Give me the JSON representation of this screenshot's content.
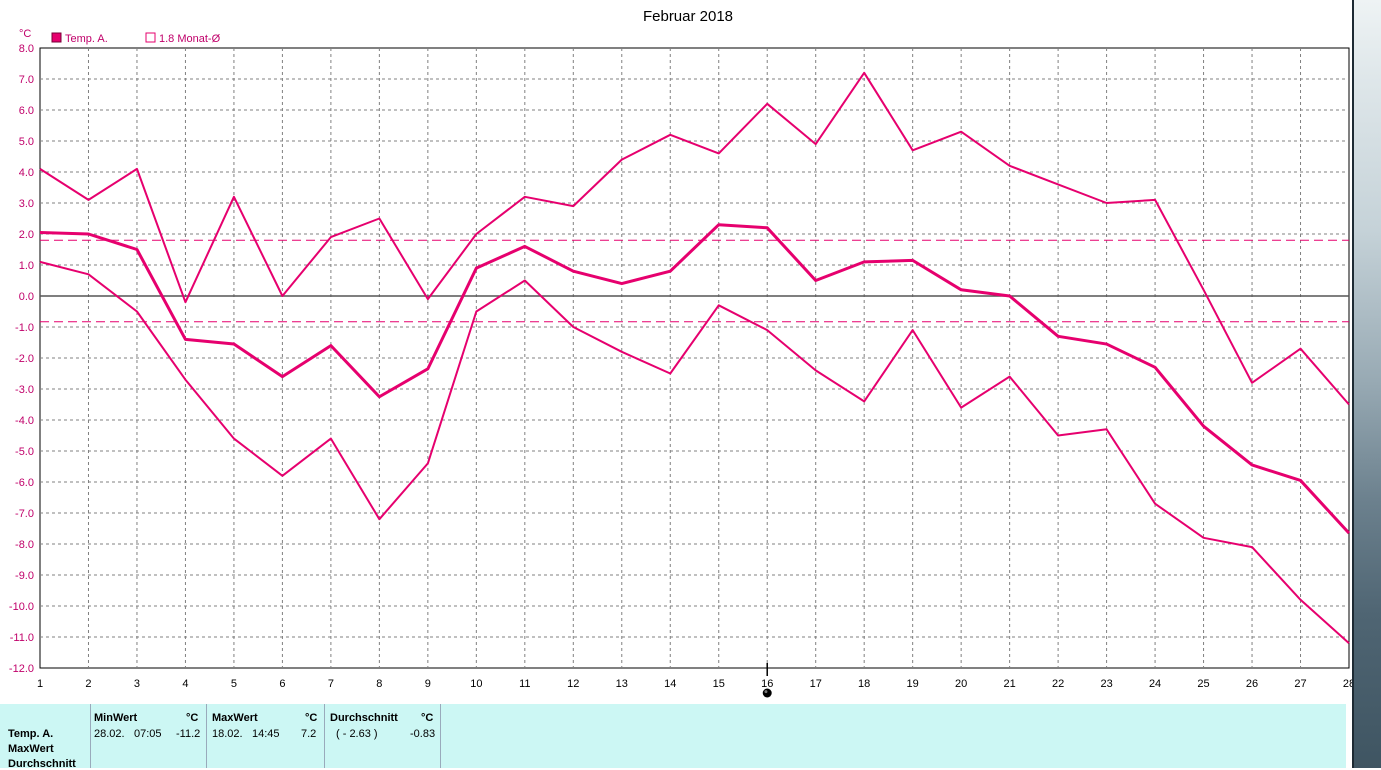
{
  "chart_data": {
    "type": "line",
    "title": "Februar 2018",
    "ylabel": "°C",
    "xlabel": "",
    "ylim": [
      -12.0,
      8.0
    ],
    "xlim": [
      1,
      28
    ],
    "yticks": [
      "8.0",
      "7.0",
      "6.0",
      "5.0",
      "4.0",
      "3.0",
      "2.0",
      "1.0",
      "0.0",
      "-1.0",
      "-2.0",
      "-3.0",
      "-4.0",
      "-5.0",
      "-6.0",
      "-7.0",
      "-8.0",
      "-9.0",
      "-10.0",
      "-11.0",
      "-12.0"
    ],
    "x": [
      1,
      2,
      3,
      4,
      5,
      6,
      7,
      8,
      9,
      10,
      11,
      12,
      13,
      14,
      15,
      16,
      17,
      18,
      19,
      20,
      21,
      22,
      23,
      24,
      25,
      26,
      27,
      28
    ],
    "grid": true,
    "legend_position": "top-left",
    "legend": [
      {
        "label": "Temp. A.",
        "marker": "filled-square"
      },
      {
        "label": "1.8 Monat-Ø",
        "marker": "open-square"
      }
    ],
    "series": [
      {
        "role": "max",
        "values": [
          4.1,
          3.1,
          4.1,
          -0.2,
          3.2,
          0.0,
          1.9,
          2.5,
          -0.1,
          2.0,
          3.2,
          2.9,
          4.4,
          5.2,
          4.6,
          6.2,
          4.9,
          7.2,
          4.7,
          5.3,
          4.2,
          3.6,
          3.0,
          3.1,
          0.2,
          -2.8,
          -1.7,
          -3.5
        ]
      },
      {
        "role": "mean",
        "values": [
          2.05,
          2.0,
          1.5,
          -1.4,
          -1.55,
          -2.6,
          -1.6,
          -3.25,
          -2.35,
          0.9,
          1.6,
          0.8,
          0.4,
          0.8,
          2.3,
          2.2,
          0.5,
          1.1,
          1.15,
          0.2,
          0.0,
          -1.3,
          -1.55,
          -2.3,
          -4.2,
          -5.45,
          -5.95,
          -7.65
        ]
      },
      {
        "role": "min",
        "values": [
          1.1,
          0.7,
          -0.5,
          -2.7,
          -4.6,
          -5.8,
          -4.6,
          -7.2,
          -5.4,
          -0.5,
          0.5,
          -1.0,
          -1.8,
          -2.5,
          -0.3,
          -1.1,
          -2.4,
          -3.4,
          -1.1,
          -3.6,
          -2.6,
          -4.5,
          -4.3,
          -6.7,
          -7.8,
          -8.1,
          -9.8,
          -11.2
        ]
      }
    ],
    "reference_lines": [
      1.8,
      -0.83
    ],
    "marker_day": 16,
    "colors": {
      "series": "#e6006e",
      "zero_line": "#555555",
      "grid": "#808080",
      "ytick_text": "#c0006a"
    }
  },
  "table": {
    "row_labels": [
      "Temp. A.",
      "MaxWert",
      "Durchschnitt"
    ],
    "min": {
      "header": "MinWert",
      "unit": "°C",
      "date": "28.02.",
      "time": "07:05",
      "value": "-11.2"
    },
    "max": {
      "header": "MaxWert",
      "unit": "°C",
      "date": "18.02.",
      "time": "14:45",
      "value": "7.2"
    },
    "avg": {
      "header": "Durchschnitt",
      "unit": "°C",
      "note": "( - 2.63 )",
      "value": "-0.83"
    }
  }
}
